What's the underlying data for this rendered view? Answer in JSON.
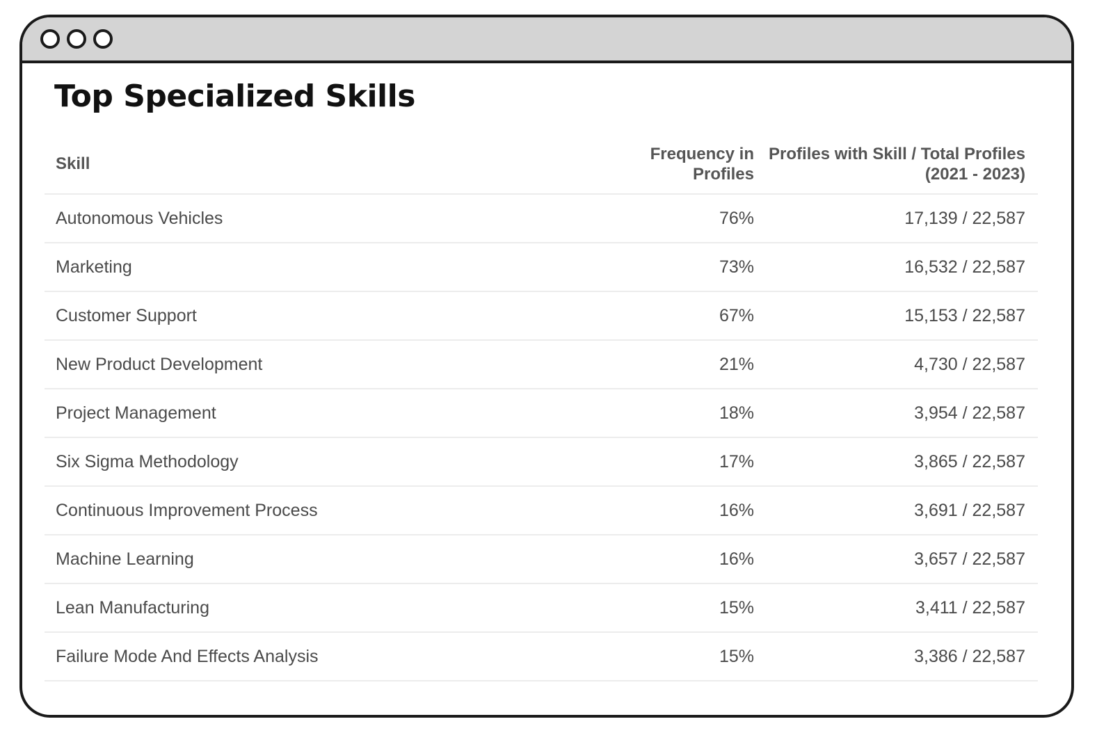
{
  "window": {
    "controls": [
      "circle-icon",
      "circle-icon",
      "circle-icon"
    ]
  },
  "page": {
    "title": "Top Specialized Skills"
  },
  "table": {
    "headers": {
      "skill": "Skill",
      "frequency": "Frequency in Profiles",
      "profiles": "Profiles with Skill / Total Profiles (2021 - 2023)"
    },
    "rows": [
      {
        "skill": "Autonomous Vehicles",
        "frequency": "76%",
        "profiles": "17,139 / 22,587"
      },
      {
        "skill": "Marketing",
        "frequency": "73%",
        "profiles": "16,532 / 22,587"
      },
      {
        "skill": "Customer Support",
        "frequency": "67%",
        "profiles": "15,153 / 22,587"
      },
      {
        "skill": "New Product Development",
        "frequency": "21%",
        "profiles": "4,730 / 22,587"
      },
      {
        "skill": "Project Management",
        "frequency": "18%",
        "profiles": "3,954 / 22,587"
      },
      {
        "skill": "Six Sigma Methodology",
        "frequency": "17%",
        "profiles": "3,865 / 22,587"
      },
      {
        "skill": "Continuous Improvement Process",
        "frequency": "16%",
        "profiles": "3,691 / 22,587"
      },
      {
        "skill": "Machine Learning",
        "frequency": "16%",
        "profiles": "3,657 / 22,587"
      },
      {
        "skill": "Lean Manufacturing",
        "frequency": "15%",
        "profiles": "3,411 / 22,587"
      },
      {
        "skill": "Failure Mode And Effects Analysis",
        "frequency": "15%",
        "profiles": "3,386 / 22,587"
      }
    ]
  },
  "colors": {
    "titlebar": "#d4d4d4",
    "border": "#1a1a1a",
    "header_text": "#555555",
    "cell_text": "#4a4a4a",
    "divider": "#ececec"
  }
}
